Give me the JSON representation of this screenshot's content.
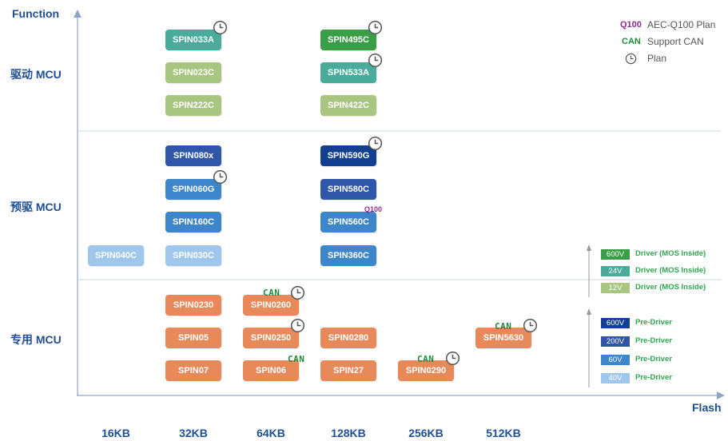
{
  "axes": {
    "y_title": "Function",
    "x_title": "Flash"
  },
  "rows": [
    "驱动 MCU",
    "预驱 MCU",
    "专用 MCU"
  ],
  "columns": [
    "16KB",
    "32KB",
    "64KB",
    "128KB",
    "256KB",
    "512KB"
  ],
  "chips": [
    {
      "label": "SPIN033A",
      "color": "#4aab9b"
    },
    {
      "label": "SPIN023C",
      "color": "#a8c680"
    },
    {
      "label": "SPIN222C",
      "color": "#a8c680"
    },
    {
      "label": "SPIN495C",
      "color": "#3a9e46"
    },
    {
      "label": "SPIN533A",
      "color": "#4aab9b"
    },
    {
      "label": "SPIN422C",
      "color": "#a8c680"
    },
    {
      "label": "SPIN080x",
      "color": "#2f56a8"
    },
    {
      "label": "SPIN060G",
      "color": "#3e86cc"
    },
    {
      "label": "SPIN160C",
      "color": "#3e86cc"
    },
    {
      "label": "SPIN030C",
      "color": "#9fc6ec"
    },
    {
      "label": "SPIN590G",
      "color": "#123f8f"
    },
    {
      "label": "SPIN580C",
      "color": "#2f56a8"
    },
    {
      "label": "SPIN560C",
      "color": "#3e86cc"
    },
    {
      "label": "SPIN360C",
      "color": "#3e86cc"
    },
    {
      "label": "SPIN040C",
      "color": "#9fc6ec"
    },
    {
      "label": "SPIN0230",
      "color": "#e8895a"
    },
    {
      "label": "SPIN05",
      "color": "#e8895a"
    },
    {
      "label": "SPIN07",
      "color": "#e8895a"
    },
    {
      "label": "SPIN0260",
      "color": "#e8895a"
    },
    {
      "label": "SPIN0250",
      "color": "#e8895a"
    },
    {
      "label": "SPIN06",
      "color": "#e8895a"
    },
    {
      "label": "SPIN0280",
      "color": "#e8895a"
    },
    {
      "label": "SPIN27",
      "color": "#e8895a"
    },
    {
      "label": "SPIN0290",
      "color": "#e8895a"
    },
    {
      "label": "SPIN5630",
      "color": "#e8895a"
    }
  ],
  "tags": {
    "can": "CAN",
    "q100": "Q100"
  },
  "legend": {
    "q100_key": "Q100",
    "q100_text": "AEC-Q100 Plan",
    "can_key": "CAN",
    "can_text": "Support CAN",
    "plan_text": "Plan"
  },
  "voltage_driver": [
    {
      "v": "600V",
      "color": "#3a9e46",
      "label": "Driver (MOS Inside)"
    },
    {
      "v": "24V",
      "color": "#4aab9b",
      "label": "Driver (MOS Inside)"
    },
    {
      "v": "12V",
      "color": "#a8c680",
      "label": "Driver (MOS Inside)"
    }
  ],
  "voltage_predriver": [
    {
      "v": "600V",
      "color": "#123f8f",
      "label": "Pre-Driver"
    },
    {
      "v": "200V",
      "color": "#2f56a8",
      "label": "Pre-Driver"
    },
    {
      "v": "60V",
      "color": "#3e86cc",
      "label": "Pre-Driver"
    },
    {
      "v": "40V",
      "color": "#9fc6ec",
      "label": "Pre-Driver"
    }
  ]
}
